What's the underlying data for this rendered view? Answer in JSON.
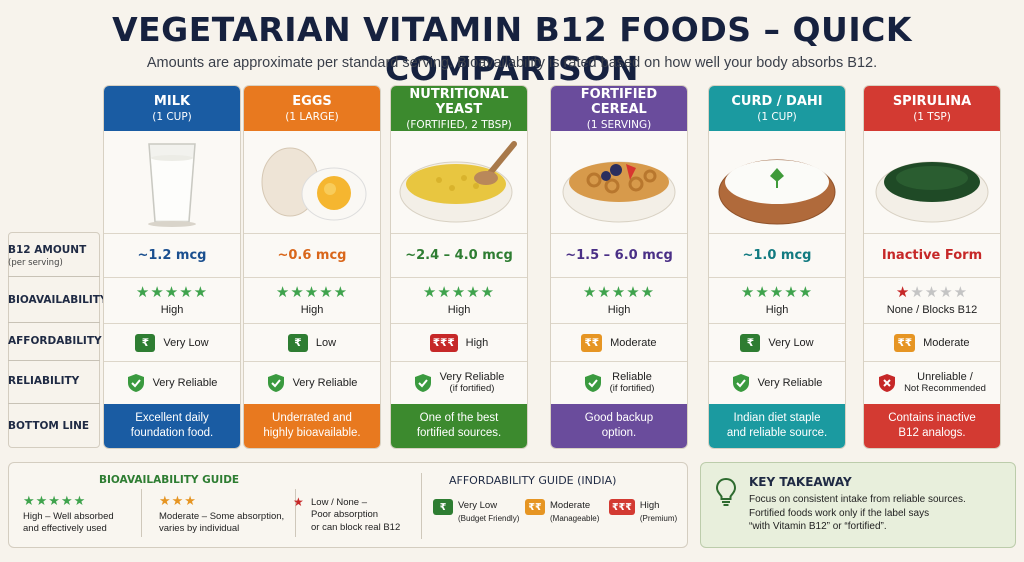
{
  "title": "VEGETARIAN VITAMIN B12 FOODS – QUICK COMPARISON",
  "subtitle": "Amounts are approximate per standard serving. Bioavailability is rated based on how well your body absorbs B12.",
  "row_labels": {
    "amount": "B12 AMOUNT",
    "amount_sub": "(per serving)",
    "bio": "BIOAVAILABILITY",
    "afford": "AFFORDABILITY",
    "reliab": "RELIABILITY",
    "bottom": "BOTTOM LINE"
  },
  "foods": [
    {
      "name": "MILK",
      "serving": "(1 CUP)",
      "amount": "~1.2 mcg",
      "amount_color": "#1a4f8f",
      "stars": "★★★★★",
      "bio": "High",
      "afford_symbol": "₹",
      "afford": "Very Low",
      "reliab1": "Very Reliable",
      "reliab2": "",
      "bottom1": "Excellent daily",
      "bottom2": "foundation food.",
      "color": "#1a5ca3",
      "image": "glass-of-milk"
    },
    {
      "name": "EGGS",
      "serving": "(1 LARGE)",
      "amount": "~0.6 mcg",
      "amount_color": "#d9661a",
      "stars": "★★★★★",
      "bio": "High",
      "afford_symbol": "₹",
      "afford": "Low",
      "reliab1": "Very Reliable",
      "reliab2": "",
      "bottom1": "Underrated and",
      "bottom2": "highly bioavailable.",
      "color": "#e8791f",
      "image": "boiled-eggs"
    },
    {
      "name": "NUTRITIONAL YEAST",
      "serving": "(FORTIFIED, 2 TBSP)",
      "amount": "~2.4 – 4.0 mcg",
      "amount_color": "#2e7d32",
      "stars": "★★★★★",
      "bio": "High",
      "afford_symbol": "₹₹₹",
      "afford": "High",
      "reliab1": "Very Reliable",
      "reliab2": "(if fortified)",
      "bottom1": "One of the best",
      "bottom2": "fortified sources.",
      "color": "#3c8a2e",
      "image": "yeast-flakes"
    },
    {
      "name": "FORTIFIED CEREAL",
      "serving": "(1 SERVING)",
      "amount": "~1.5 – 6.0 mcg",
      "amount_color": "#4a2f86",
      "stars": "★★★★★",
      "bio": "High",
      "afford_symbol": "₹₹",
      "afford": "Moderate",
      "reliab1": "Reliable",
      "reliab2": "(if fortified)",
      "bottom1": "Good backup",
      "bottom2": "option.",
      "color": "#6a4c9c",
      "image": "cereal-bowl"
    },
    {
      "name": "CURD / DAHI",
      "serving": "(1 CUP)",
      "amount": "~1.0 mcg",
      "amount_color": "#117a80",
      "stars": "★★★★★",
      "bio": "High",
      "afford_symbol": "₹",
      "afford": "Very Low",
      "reliab1": "Very Reliable",
      "reliab2": "",
      "bottom1": "Indian diet staple",
      "bottom2": "and reliable source.",
      "color": "#1b9aa0",
      "image": "curd-bowl"
    },
    {
      "name": "SPIRULINA",
      "serving": "(1 TSP)",
      "amount": "Inactive Form",
      "amount_color": "#c62828",
      "stars": "★★★★★",
      "bio": "None / Blocks B12",
      "afford_symbol": "₹₹",
      "afford": "Moderate",
      "reliab1": "Unreliable /",
      "reliab2": "Not Recommended",
      "bottom1": "Contains inactive",
      "bottom2": "B12 analogs.",
      "color": "#d33a32",
      "image": "spirulina-powder"
    }
  ],
  "bio_guide": {
    "title": "BIOAVAILABILITY GUIDE",
    "high_stars": "★★★★★",
    "high1": "High – Well absorbed",
    "high2": "and effectively used",
    "mod_stars": "★★★",
    "mod1": "Moderate – Some absorption,",
    "mod2": "varies by individual",
    "low_star": "★",
    "low1": "Low / None –",
    "low2": "Poor absorption",
    "low3": "or can block real B12"
  },
  "afford_guide": {
    "title": "AFFORDABILITY GUIDE (INDIA)",
    "items": [
      {
        "symbol": "₹",
        "label": "Very Low",
        "sub": "(Budget Friendly)",
        "color": "#2e7d32"
      },
      {
        "symbol": "₹₹",
        "label": "Moderate",
        "sub": "(Manageable)",
        "color": "#e69523"
      },
      {
        "symbol": "₹₹₹",
        "label": "High",
        "sub": "(Premium)",
        "color": "#d33a32"
      }
    ]
  },
  "takeaway": {
    "title": "KEY TAKEAWAY",
    "line1": "Focus on consistent intake from reliable sources.",
    "line2": "Fortified foods work only if the label says",
    "line3": "“with Vitamin B12” or “fortified”."
  },
  "colors": {
    "green": "#2e7d32",
    "star_green": "#3fa34d",
    "star_gray": "#c4c4c4",
    "red": "#c62828",
    "orange": "#e69523"
  }
}
